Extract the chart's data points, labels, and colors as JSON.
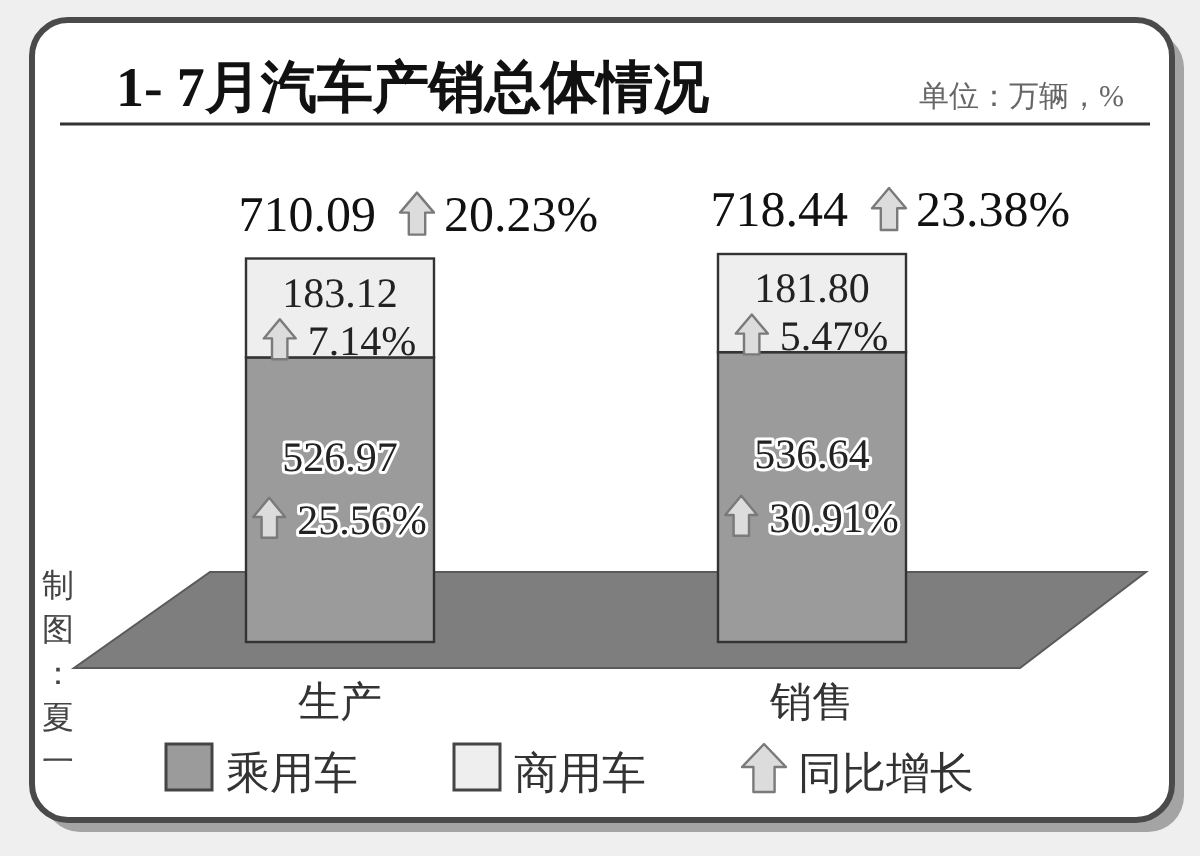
{
  "chart_data": {
    "type": "bar",
    "title": "1- 7月汽车产销总体情况",
    "subtitle": "单位：万辆，%",
    "categories": [
      "生产",
      "销售"
    ],
    "stacked": true,
    "series": [
      {
        "name": "乘用车",
        "color": "#9b9b9b",
        "values": [
          526.97,
          536.64
        ],
        "value_labels": [
          "526.97",
          "536.64"
        ]
      },
      {
        "name": "商用车",
        "color": "#eeeeee",
        "values": [
          183.12,
          181.8
        ],
        "value_labels": [
          "183.12",
          "181.80"
        ]
      }
    ],
    "totals": [
      "710.09",
      "718.44"
    ],
    "annotations": [
      {
        "text": "20.23%",
        "x": "生产",
        "y": 710.09
      },
      {
        "text": "23.38%",
        "x": "销售",
        "y": 718.44
      },
      "25.56%",
      "30.91%",
      "7.14%",
      "5.47%",
      "同比增长",
      "制图：夏一"
    ],
    "legend": "bottom"
  }
}
